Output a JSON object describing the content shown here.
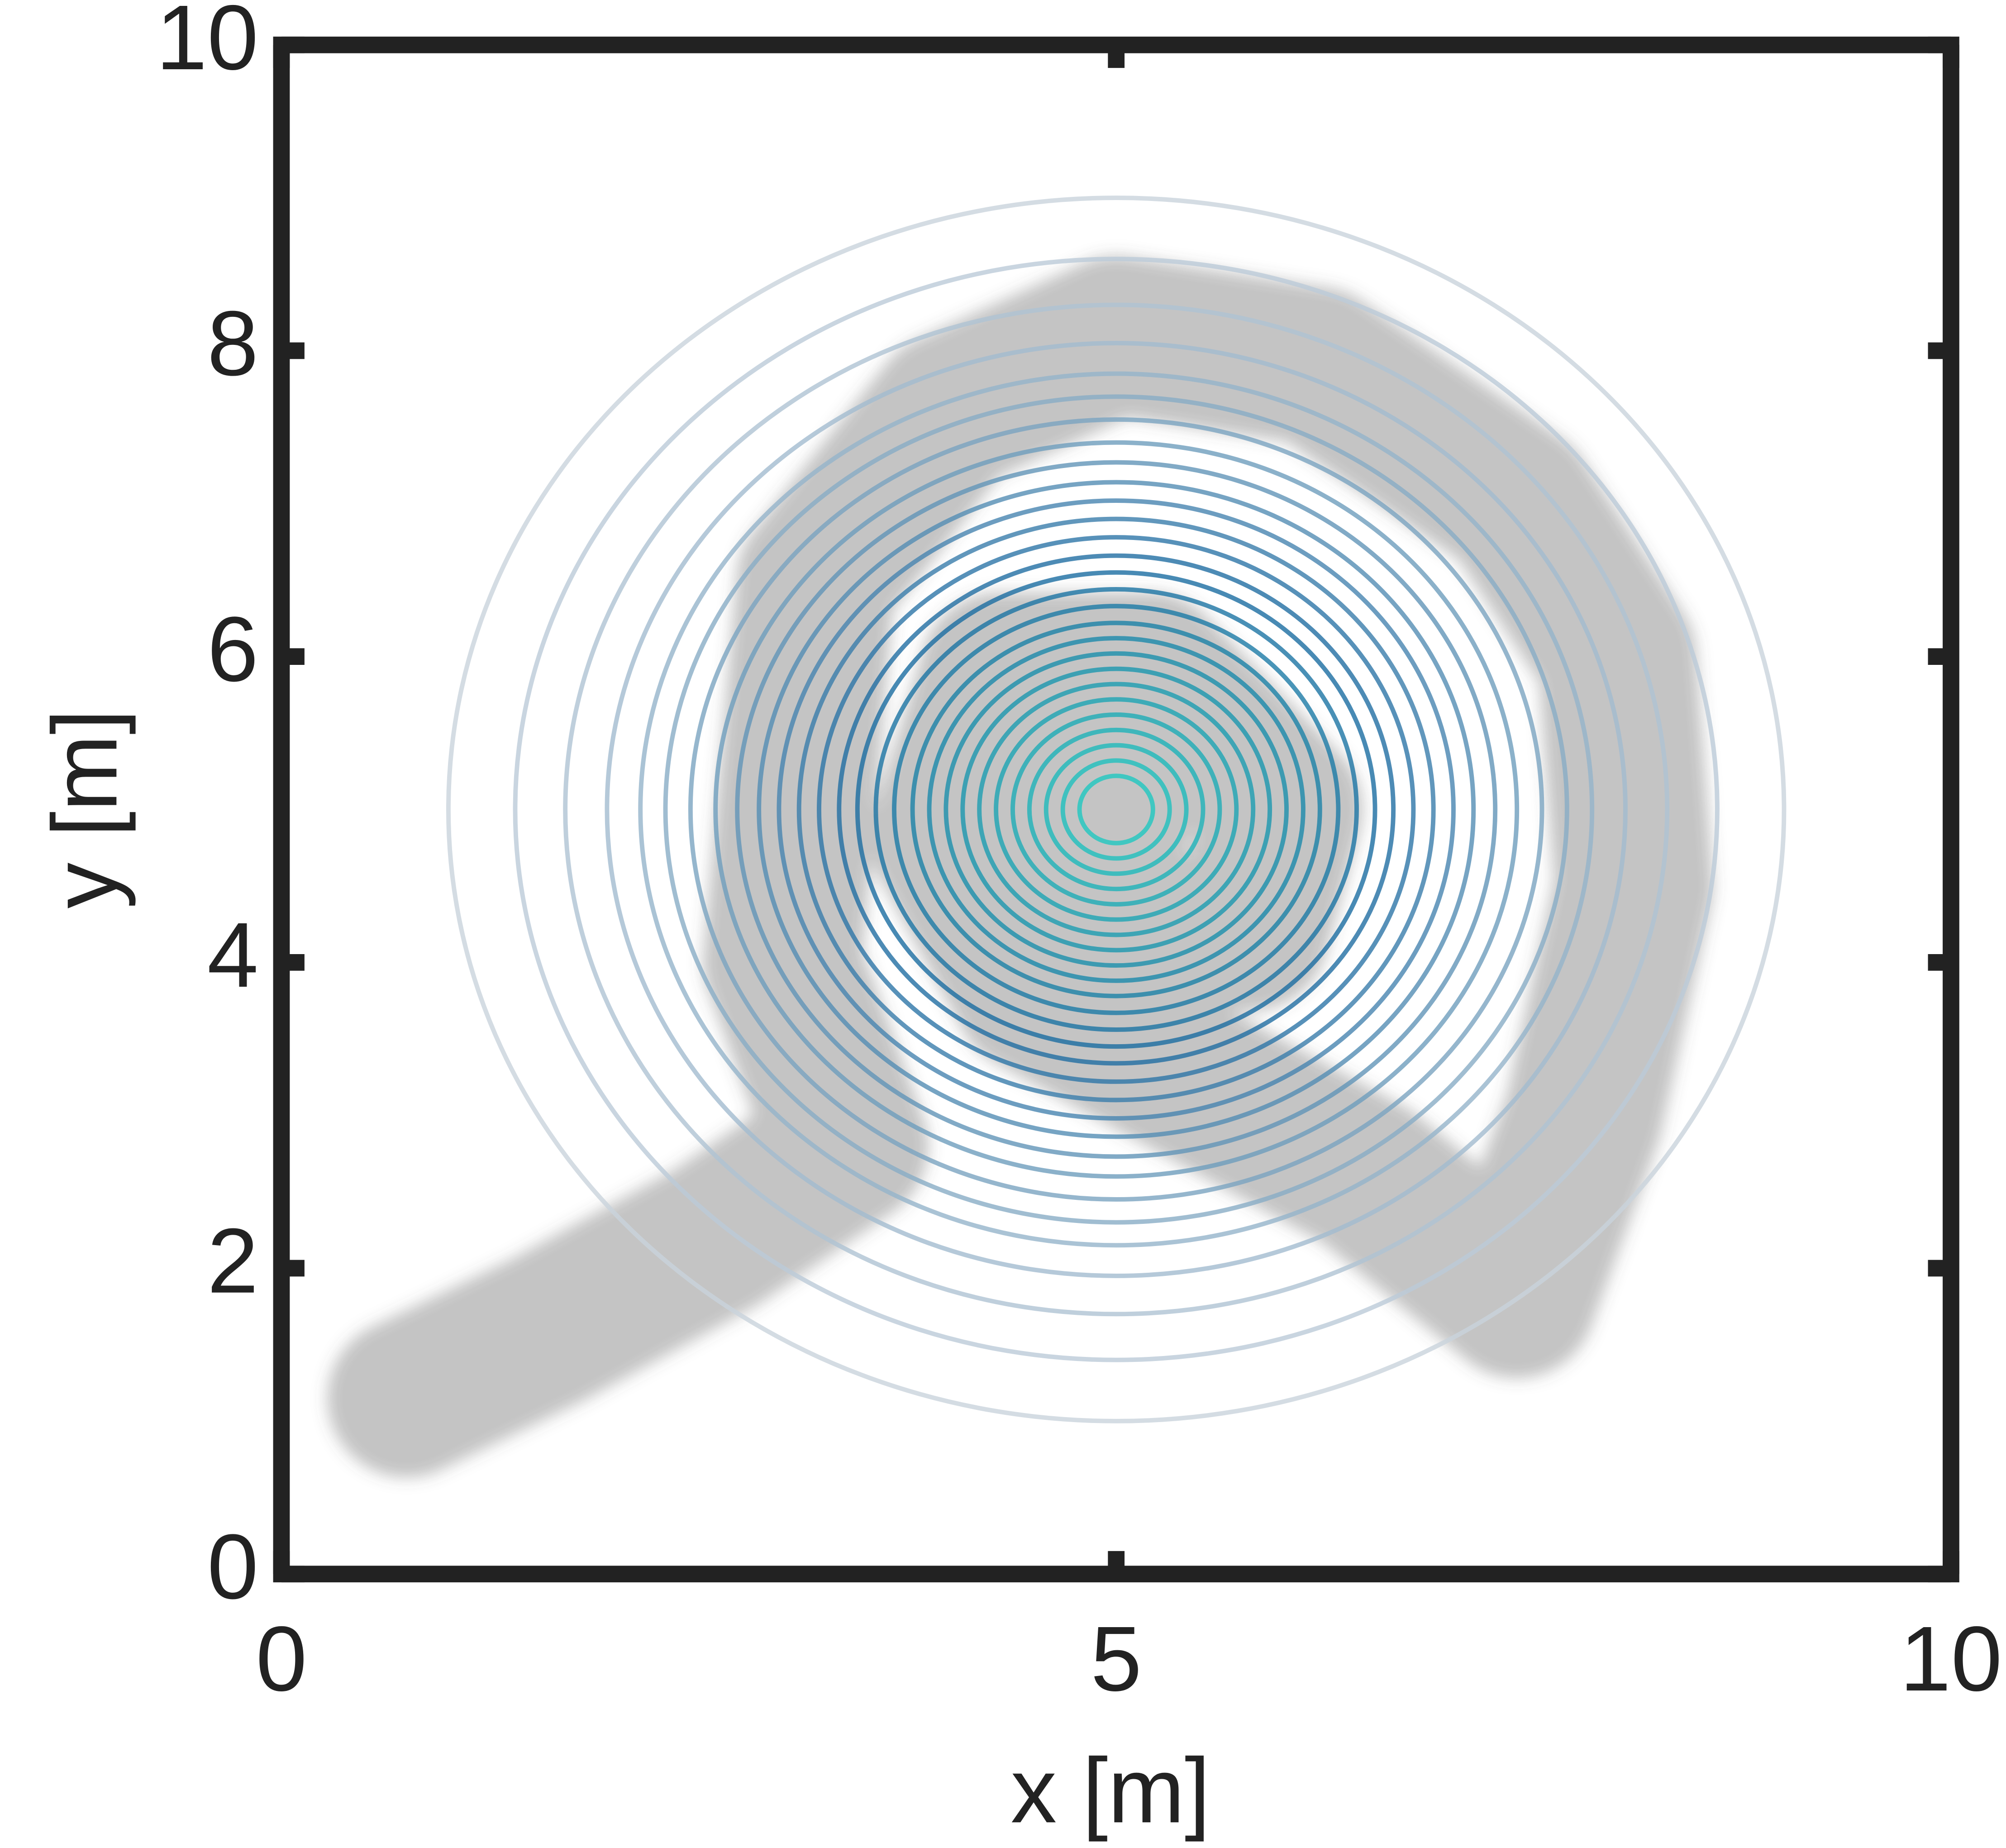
{
  "chart_data": {
    "type": "contour",
    "xlabel": "x [m]",
    "ylabel": "y [m]",
    "xlim": [
      0,
      10
    ],
    "ylim": [
      0,
      10
    ],
    "xticks": [
      0,
      5,
      10
    ],
    "yticks": [
      0,
      2,
      4,
      6,
      8,
      10
    ],
    "contour": {
      "center": [
        5,
        5
      ],
      "radii": [
        4.0,
        3.6,
        3.3,
        3.05,
        2.85,
        2.7,
        2.55,
        2.4,
        2.27,
        2.14,
        2.02,
        1.9,
        1.78,
        1.66,
        1.55,
        1.44,
        1.33,
        1.22,
        1.12,
        1.02,
        0.92,
        0.82,
        0.72,
        0.62,
        0.52,
        0.42,
        0.32,
        0.22
      ],
      "colormap": [
        "#c9d3dc",
        "#1a6aa0",
        "#1fc8c0"
      ]
    },
    "trajectory": {
      "color": "#555555",
      "x": [
        0.75,
        1.6,
        2.6,
        3.4,
        3.0,
        3.2,
        4.0,
        5.0,
        6.2,
        7.4,
        8.0,
        8.1,
        7.8,
        7.4,
        6.5,
        5.5,
        4.5,
        4.0,
        4.3,
        5.2,
        6.0,
        5.8,
        5.0,
        4.7,
        5.0
      ],
      "y": [
        1.15,
        1.6,
        2.2,
        2.8,
        4.0,
        6.5,
        7.6,
        8.1,
        7.9,
        7.0,
        6.0,
        4.5,
        3.0,
        1.8,
        2.6,
        3.2,
        3.8,
        4.8,
        5.9,
        5.9,
        5.0,
        4.2,
        4.2,
        5.0,
        5.0
      ]
    }
  }
}
